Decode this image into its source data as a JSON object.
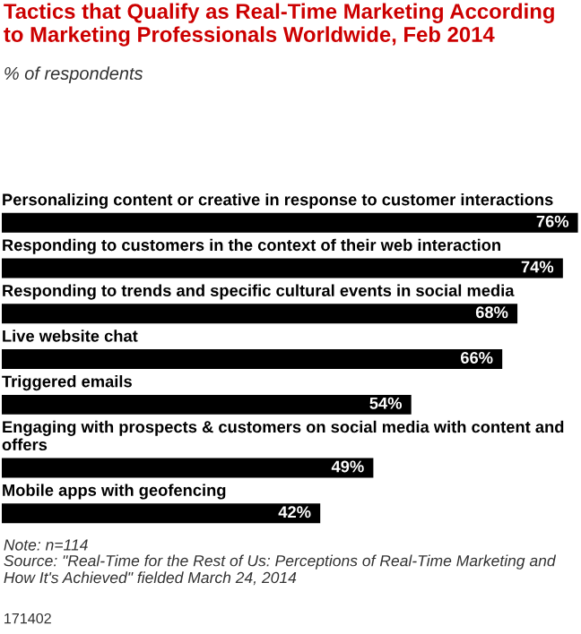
{
  "chart_data": {
    "type": "bar",
    "orientation": "horizontal",
    "title": "Tactics that Qualify as Real-Time Marketing According to Marketing Professionals Worldwide, Feb 2014",
    "subtitle": "% of respondents",
    "categories": [
      "Personalizing content or creative in response to customer interactions",
      "Responding to customers in the context of their web interaction",
      "Responding to trends and specific cultural events in social media",
      "Live website chat",
      "Triggered emails",
      "Engaging with prospects & customers on social media with content and offers",
      "Mobile apps with geofencing"
    ],
    "values": [
      76,
      74,
      68,
      66,
      54,
      49,
      42
    ],
    "value_labels": [
      "76%",
      "74%",
      "68%",
      "66%",
      "54%",
      "49%",
      "42%"
    ],
    "color": "#000000",
    "annotations": [
      "Note: n=114",
      "Source: \"Real-Time for the Rest of Us: Perceptions of Real-Time Marketing and How It's Achieved\" fielded March 24, 2014",
      "171402"
    ]
  }
}
